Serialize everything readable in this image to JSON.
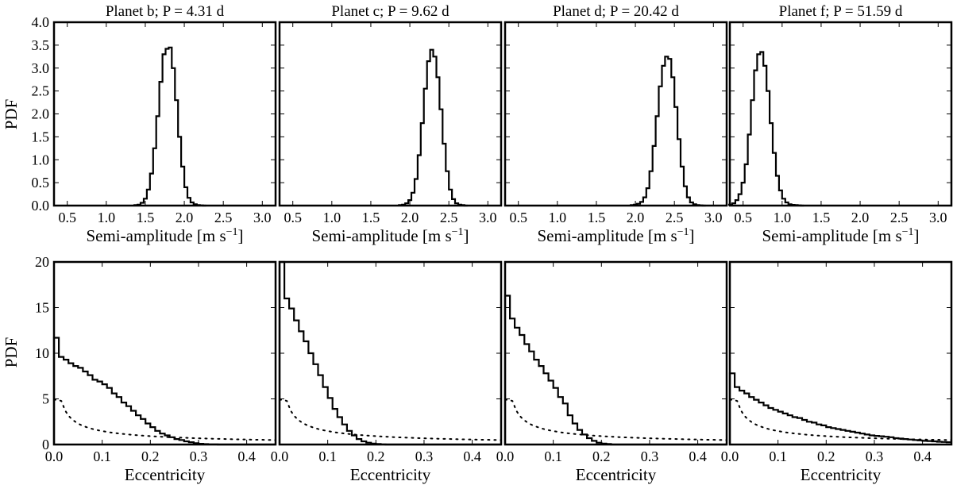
{
  "figure": {
    "top_row_ylabel": "PDF",
    "bottom_row_ylabel": "PDF",
    "top_row_xlabel": "Semi-amplitude [m s",
    "top_row_xlabel_sup": "−1",
    "top_row_xlabel_end": "]",
    "bottom_row_xlabel": "Eccentricity"
  },
  "chart_data": [
    {
      "type": "line",
      "step": true,
      "row": "top",
      "col": 0,
      "title": "Planet b; P = 4.31 d",
      "xlabel": "Semi-amplitude [m s−1]",
      "ylabel": "PDF",
      "xlim": [
        0.33,
        3.17
      ],
      "ylim": [
        0,
        4.0
      ],
      "xticks": [
        "0.5",
        "1.0",
        "1.5",
        "2.0",
        "2.5",
        "3.0"
      ],
      "yticks": [
        "0.0",
        "0.5",
        "1.0",
        "1.5",
        "2.0",
        "2.5",
        "3.0",
        "3.5",
        "4.0"
      ],
      "series": [
        {
          "x": [
            1.38,
            1.42,
            1.46,
            1.5,
            1.54,
            1.58,
            1.62,
            1.66,
            1.7,
            1.74,
            1.78,
            1.82,
            1.86,
            1.9,
            1.94,
            1.98,
            2.02,
            2.06,
            2.1,
            2.14,
            2.18,
            2.22,
            2.26
          ],
          "y": [
            0.01,
            0.02,
            0.06,
            0.15,
            0.35,
            0.7,
            1.25,
            1.95,
            2.7,
            3.3,
            3.42,
            3.45,
            3.0,
            2.3,
            1.5,
            0.85,
            0.4,
            0.17,
            0.07,
            0.03,
            0.01,
            0.005,
            0
          ]
        }
      ]
    },
    {
      "type": "line",
      "step": true,
      "row": "top",
      "col": 1,
      "title": "Planet c; P = 9.62 d",
      "xlabel": "Semi-amplitude [m s−1]",
      "ylabel": "",
      "xlim": [
        0.33,
        3.17
      ],
      "ylim": [
        0,
        4.0
      ],
      "xticks": [
        "0.5",
        "1.0",
        "1.5",
        "2.0",
        "2.5",
        "3.0"
      ],
      "series": [
        {
          "x": [
            1.88,
            1.92,
            1.96,
            2.0,
            2.04,
            2.08,
            2.12,
            2.16,
            2.2,
            2.24,
            2.28,
            2.32,
            2.36,
            2.4,
            2.44,
            2.48,
            2.52,
            2.56,
            2.6,
            2.64,
            2.68,
            2.72
          ],
          "y": [
            0.01,
            0.02,
            0.05,
            0.12,
            0.28,
            0.58,
            1.1,
            1.8,
            2.55,
            3.15,
            3.4,
            3.25,
            2.8,
            2.1,
            1.35,
            0.75,
            0.35,
            0.14,
            0.05,
            0.02,
            0.01,
            0
          ]
        }
      ]
    },
    {
      "type": "line",
      "step": true,
      "row": "top",
      "col": 2,
      "title": "Planet d; P = 20.42 d",
      "xlabel": "Semi-amplitude [m s−1]",
      "ylabel": "",
      "xlim": [
        0.33,
        3.17
      ],
      "ylim": [
        0,
        4.0
      ],
      "xticks": [
        "0.5",
        "1.0",
        "1.5",
        "2.0",
        "2.5",
        "3.0"
      ],
      "series": [
        {
          "x": [
            1.96,
            2.0,
            2.04,
            2.08,
            2.12,
            2.16,
            2.2,
            2.24,
            2.28,
            2.32,
            2.36,
            2.4,
            2.44,
            2.48,
            2.52,
            2.56,
            2.6,
            2.64,
            2.68,
            2.72,
            2.76,
            2.8,
            2.84,
            2.88
          ],
          "y": [
            0.01,
            0.02,
            0.04,
            0.08,
            0.18,
            0.38,
            0.75,
            1.3,
            1.95,
            2.6,
            3.05,
            3.25,
            3.2,
            2.8,
            2.15,
            1.45,
            0.85,
            0.42,
            0.18,
            0.07,
            0.03,
            0.01,
            0.005,
            0
          ]
        }
      ]
    },
    {
      "type": "line",
      "step": true,
      "row": "top",
      "col": 3,
      "title": "Planet f; P = 51.59 d",
      "xlabel": "Semi-amplitude [m s−1]",
      "ylabel": "",
      "xlim": [
        0.33,
        3.17
      ],
      "ylim": [
        0,
        4.0
      ],
      "xticks": [
        "0.5",
        "1.0",
        "1.5",
        "2.0",
        "2.5",
        "3.0"
      ],
      "series": [
        {
          "x": [
            0.34,
            0.38,
            0.42,
            0.46,
            0.5,
            0.54,
            0.58,
            0.62,
            0.66,
            0.7,
            0.74,
            0.78,
            0.82,
            0.86,
            0.9,
            0.94,
            0.98,
            1.02,
            1.06,
            1.1,
            1.14,
            1.18,
            1.22,
            1.26
          ],
          "y": [
            0.02,
            0.05,
            0.12,
            0.25,
            0.5,
            0.9,
            1.55,
            2.3,
            2.95,
            3.3,
            3.35,
            3.05,
            2.5,
            1.8,
            1.15,
            0.65,
            0.33,
            0.15,
            0.07,
            0.03,
            0.015,
            0.01,
            0.005,
            0
          ]
        }
      ]
    },
    {
      "type": "line",
      "step": true,
      "row": "bottom",
      "col": 0,
      "xlabel": "Eccentricity",
      "ylabel": "PDF",
      "xlim": [
        0,
        0.46
      ],
      "ylim": [
        0,
        20
      ],
      "xticks": [
        "0.0",
        "0.1",
        "0.2",
        "0.3",
        "0.4"
      ],
      "yticks": [
        "0",
        "5",
        "10",
        "15",
        "20"
      ],
      "series": [
        {
          "name": "posterior",
          "binwidth": 0.01,
          "y": [
            11.7,
            9.6,
            9.3,
            8.9,
            8.6,
            8.4,
            8.0,
            7.6,
            7.1,
            6.9,
            6.6,
            6.2,
            5.6,
            5.2,
            4.6,
            4.2,
            3.7,
            3.2,
            2.8,
            2.3,
            1.9,
            1.5,
            1.2,
            1.0,
            0.8,
            0.6,
            0.5,
            0.35,
            0.25,
            0.15,
            0.08,
            0.04,
            0.02,
            0.01,
            0,
            0,
            0,
            0,
            0,
            0,
            0,
            0,
            0,
            0,
            0,
            0
          ]
        },
        {
          "name": "prior",
          "style": "dotted"
        }
      ]
    },
    {
      "type": "line",
      "step": true,
      "row": "bottom",
      "col": 1,
      "xlabel": "Eccentricity",
      "ylabel": "",
      "xlim": [
        0,
        0.46
      ],
      "ylim": [
        0,
        20
      ],
      "xticks": [
        "0.0",
        "0.1",
        "0.2",
        "0.3",
        "0.4"
      ],
      "series": [
        {
          "name": "posterior",
          "binwidth": 0.01,
          "y": [
            20.5,
            16.0,
            14.9,
            13.6,
            12.4,
            11.3,
            10.0,
            8.8,
            7.6,
            6.3,
            5.1,
            3.9,
            3.0,
            2.2,
            1.5,
            1.0,
            0.6,
            0.35,
            0.2,
            0.1,
            0.05,
            0.02,
            0,
            0,
            0,
            0,
            0,
            0,
            0,
            0,
            0,
            0,
            0,
            0,
            0,
            0,
            0,
            0,
            0,
            0,
            0,
            0,
            0,
            0,
            0,
            0
          ]
        },
        {
          "name": "prior",
          "style": "dotted"
        }
      ]
    },
    {
      "type": "line",
      "step": true,
      "row": "bottom",
      "col": 2,
      "xlabel": "Eccentricity",
      "ylabel": "",
      "xlim": [
        0,
        0.46
      ],
      "ylim": [
        0,
        20
      ],
      "xticks": [
        "0.0",
        "0.1",
        "0.2",
        "0.3",
        "0.4"
      ],
      "series": [
        {
          "name": "posterior",
          "binwidth": 0.01,
          "y": [
            16.3,
            13.8,
            12.8,
            12.0,
            11.0,
            10.2,
            9.3,
            8.6,
            7.8,
            7.0,
            6.2,
            5.2,
            4.5,
            3.2,
            2.3,
            1.6,
            1.1,
            0.7,
            0.4,
            0.2,
            0.1,
            0.05,
            0,
            0,
            0,
            0,
            0,
            0,
            0,
            0,
            0,
            0,
            0,
            0,
            0,
            0,
            0,
            0,
            0,
            0,
            0,
            0,
            0,
            0,
            0,
            0
          ]
        },
        {
          "name": "prior",
          "style": "dotted"
        }
      ]
    },
    {
      "type": "line",
      "step": true,
      "row": "bottom",
      "col": 3,
      "xlabel": "Eccentricity",
      "ylabel": "",
      "xlim": [
        0,
        0.46
      ],
      "ylim": [
        0,
        20
      ],
      "xticks": [
        "0.0",
        "0.1",
        "0.2",
        "0.3",
        "0.4"
      ],
      "series": [
        {
          "name": "posterior",
          "binwidth": 0.01,
          "y": [
            7.8,
            6.3,
            5.9,
            5.6,
            5.2,
            4.9,
            4.6,
            4.3,
            4.0,
            3.8,
            3.6,
            3.4,
            3.2,
            3.0,
            2.9,
            2.7,
            2.5,
            2.4,
            2.2,
            2.1,
            1.9,
            1.8,
            1.7,
            1.6,
            1.5,
            1.4,
            1.3,
            1.2,
            1.1,
            1.0,
            0.95,
            0.9,
            0.85,
            0.8,
            0.7,
            0.65,
            0.6,
            0.55,
            0.5,
            0.45,
            0.4,
            0.38,
            0.35,
            0.3,
            0.28,
            0.25
          ]
        },
        {
          "name": "prior",
          "style": "dotted"
        }
      ]
    }
  ]
}
